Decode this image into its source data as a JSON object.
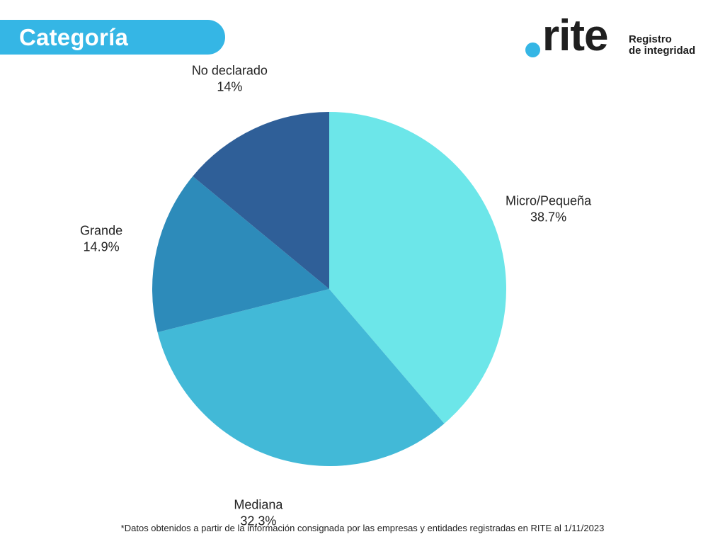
{
  "header": {
    "title": "Categoría"
  },
  "logo": {
    "word": "rite",
    "line1": "Registro",
    "line2": "de integridad",
    "dot_color": "#35b6e5"
  },
  "chart_data": {
    "type": "pie",
    "start_angle_deg": 0,
    "direction": "clockwise",
    "slices": [
      {
        "label": "Micro/Pequeña",
        "value": 38.7,
        "display": "38.7%",
        "color": "#6ce6e9"
      },
      {
        "label": "Mediana",
        "value": 32.3,
        "display": "32.3%",
        "color": "#42b9d7"
      },
      {
        "label": "Grande",
        "value": 14.9,
        "display": "14.9%",
        "color": "#2d8bba"
      },
      {
        "label": "No declarado",
        "value": 14.0,
        "display": "14%",
        "color": "#2f5f98"
      }
    ]
  },
  "footnote": "*Datos obtenidos a partir de la información consignada por las empresas y entidades registradas en RITE al 1/11/2023"
}
